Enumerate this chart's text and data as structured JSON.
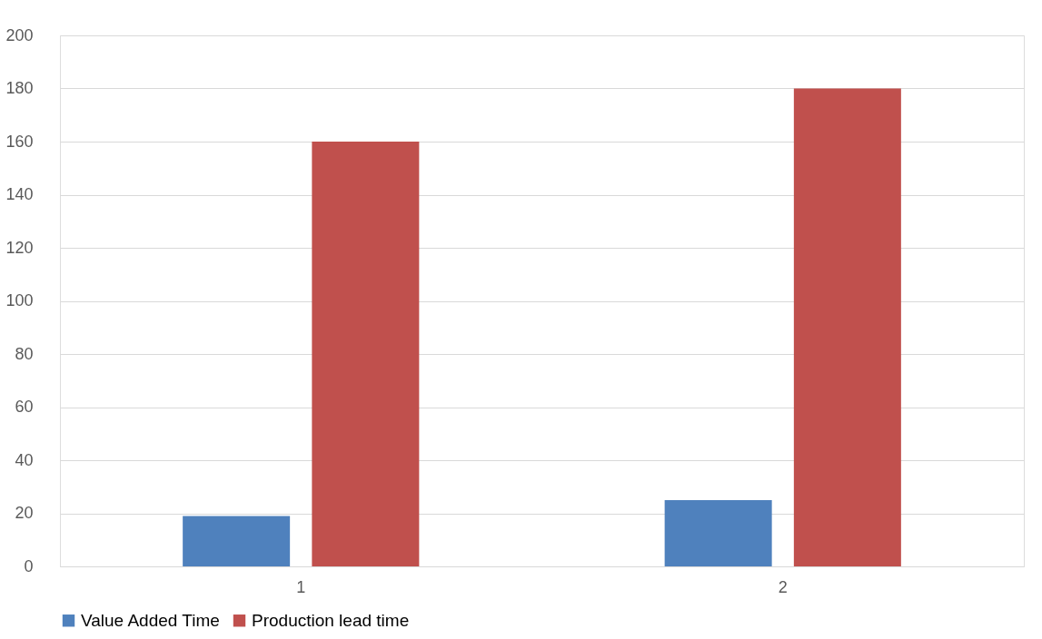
{
  "chart_data": {
    "type": "bar",
    "categories": [
      "1",
      "2"
    ],
    "series": [
      {
        "name": "Value Added Time",
        "color": "#4f81bd",
        "values": [
          19,
          25
        ]
      },
      {
        "name": "Production lead time",
        "color": "#c0504d",
        "values": [
          160,
          180
        ]
      }
    ],
    "ylim": [
      0,
      200
    ],
    "yticks": [
      0,
      20,
      40,
      60,
      80,
      100,
      120,
      140,
      160,
      180,
      200
    ],
    "grid": "y",
    "legend": "bottom"
  }
}
